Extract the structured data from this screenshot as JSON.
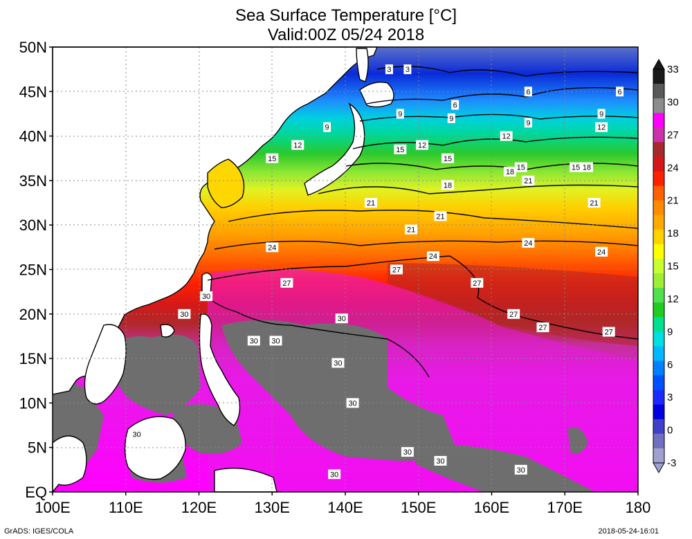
{
  "title": "Sea Surface Temperature [°C]",
  "subtitle": "Valid:00Z 05/24 2018",
  "footer_left": "GrADS: IGES/COLA",
  "footer_right": "2018-05-24-16:01",
  "y_axis": {
    "ticks": [
      {
        "value": 50,
        "label": "50N"
      },
      {
        "value": 45,
        "label": "45N"
      },
      {
        "value": 40,
        "label": "40N"
      },
      {
        "value": 35,
        "label": "35N"
      },
      {
        "value": 30,
        "label": "30N"
      },
      {
        "value": 25,
        "label": "25N"
      },
      {
        "value": 20,
        "label": "20N"
      },
      {
        "value": 15,
        "label": "15N"
      },
      {
        "value": 10,
        "label": "10N"
      },
      {
        "value": 5,
        "label": "5N"
      },
      {
        "value": 0,
        "label": "EQ"
      }
    ]
  },
  "x_axis": {
    "ticks": [
      {
        "value": 100,
        "label": "100E"
      },
      {
        "value": 110,
        "label": "110E"
      },
      {
        "value": 120,
        "label": "120E"
      },
      {
        "value": 130,
        "label": "130E"
      },
      {
        "value": 140,
        "label": "140E"
      },
      {
        "value": 150,
        "label": "150E"
      },
      {
        "value": 160,
        "label": "160E"
      },
      {
        "value": 170,
        "label": "170E"
      },
      {
        "value": 180,
        "label": "180"
      }
    ]
  },
  "colorbar": {
    "labels": [
      "33",
      "30",
      "27",
      "24",
      "21",
      "18",
      "15",
      "12",
      "9",
      "6",
      "3",
      "0",
      "-3"
    ],
    "colors": [
      "#1a1a1a",
      "#595959",
      "#8c8c8c",
      "#ff00ff",
      "#cc33aa",
      "#a52a2a",
      "#d4171a",
      "#ff2000",
      "#ff6000",
      "#ff8c00",
      "#ffaa00",
      "#ffd200",
      "#ffff00",
      "#c8ff30",
      "#9cef36",
      "#50e050",
      "#1fcc1f",
      "#00e090",
      "#00e0e0",
      "#00b8ff",
      "#0080ff",
      "#0050ff",
      "#1a2aff",
      "#0000e0",
      "#4040c8",
      "#7070c0",
      "#a0a0d0"
    ]
  },
  "chart_data": {
    "type": "heatmap",
    "title": "Sea Surface Temperature [°C]",
    "subtitle": "Valid:00Z 05/24 2018",
    "lon_range": [
      100,
      180
    ],
    "lat_range": [
      0,
      50
    ],
    "units": "°C",
    "contour_interval": 3,
    "colorbar_range": [
      -3,
      33
    ],
    "contour_labels": [
      {
        "lon": 146,
        "lat": 47.5,
        "value": 3
      },
      {
        "lon": 148.5,
        "lat": 47.5,
        "value": 3
      },
      {
        "lon": 155,
        "lat": 43.5,
        "value": 6
      },
      {
        "lon": 165,
        "lat": 45,
        "value": 6
      },
      {
        "lon": 177.5,
        "lat": 45,
        "value": 6
      },
      {
        "lon": 137.5,
        "lat": 41,
        "value": 9
      },
      {
        "lon": 147.5,
        "lat": 42.5,
        "value": 9
      },
      {
        "lon": 154.5,
        "lat": 42,
        "value": 9
      },
      {
        "lon": 165,
        "lat": 41.5,
        "value": 9
      },
      {
        "lon": 175,
        "lat": 42.5,
        "value": 9
      },
      {
        "lon": 133.5,
        "lat": 39,
        "value": 12
      },
      {
        "lon": 150.5,
        "lat": 39,
        "value": 12
      },
      {
        "lon": 162,
        "lat": 40,
        "value": 12
      },
      {
        "lon": 175,
        "lat": 41,
        "value": 12
      },
      {
        "lon": 130,
        "lat": 37.5,
        "value": 15
      },
      {
        "lon": 147.5,
        "lat": 38.5,
        "value": 15
      },
      {
        "lon": 154,
        "lat": 37.5,
        "value": 15
      },
      {
        "lon": 164,
        "lat": 36.5,
        "value": 15
      },
      {
        "lon": 171.5,
        "lat": 36.5,
        "value": 15
      },
      {
        "lon": 154,
        "lat": 34.5,
        "value": 18
      },
      {
        "lon": 162.5,
        "lat": 36,
        "value": 18
      },
      {
        "lon": 173,
        "lat": 36.5,
        "value": 18
      },
      {
        "lon": 143.5,
        "lat": 32.5,
        "value": 21
      },
      {
        "lon": 149,
        "lat": 29.5,
        "value": 21
      },
      {
        "lon": 153,
        "lat": 31,
        "value": 21
      },
      {
        "lon": 165,
        "lat": 35,
        "value": 21
      },
      {
        "lon": 174,
        "lat": 32.5,
        "value": 21
      },
      {
        "lon": 130,
        "lat": 27.5,
        "value": 24
      },
      {
        "lon": 152,
        "lat": 26.5,
        "value": 24
      },
      {
        "lon": 165,
        "lat": 28,
        "value": 24
      },
      {
        "lon": 175,
        "lat": 27,
        "value": 24
      },
      {
        "lon": 132,
        "lat": 23.5,
        "value": 27
      },
      {
        "lon": 147,
        "lat": 25,
        "value": 27
      },
      {
        "lon": 158,
        "lat": 23.5,
        "value": 27
      },
      {
        "lon": 163,
        "lat": 20,
        "value": 27
      },
      {
        "lon": 167,
        "lat": 18.5,
        "value": 27
      },
      {
        "lon": 176,
        "lat": 18,
        "value": 27
      },
      {
        "lon": 121,
        "lat": 22,
        "value": 30
      },
      {
        "lon": 118,
        "lat": 20,
        "value": 30
      },
      {
        "lon": 127.5,
        "lat": 17,
        "value": 30
      },
      {
        "lon": 130.5,
        "lat": 17,
        "value": 30
      },
      {
        "lon": 139.5,
        "lat": 19.5,
        "value": 30
      },
      {
        "lon": 139,
        "lat": 14.5,
        "value": 30
      },
      {
        "lon": 141,
        "lat": 10,
        "value": 30
      },
      {
        "lon": 111.5,
        "lat": 6.5,
        "value": 30
      },
      {
        "lon": 148.5,
        "lat": 4.5,
        "value": 30
      },
      {
        "lon": 153,
        "lat": 3.5,
        "value": 30
      },
      {
        "lon": 138.5,
        "lat": 2,
        "value": 30
      },
      {
        "lon": 164,
        "lat": 2.5,
        "value": 30
      }
    ]
  }
}
